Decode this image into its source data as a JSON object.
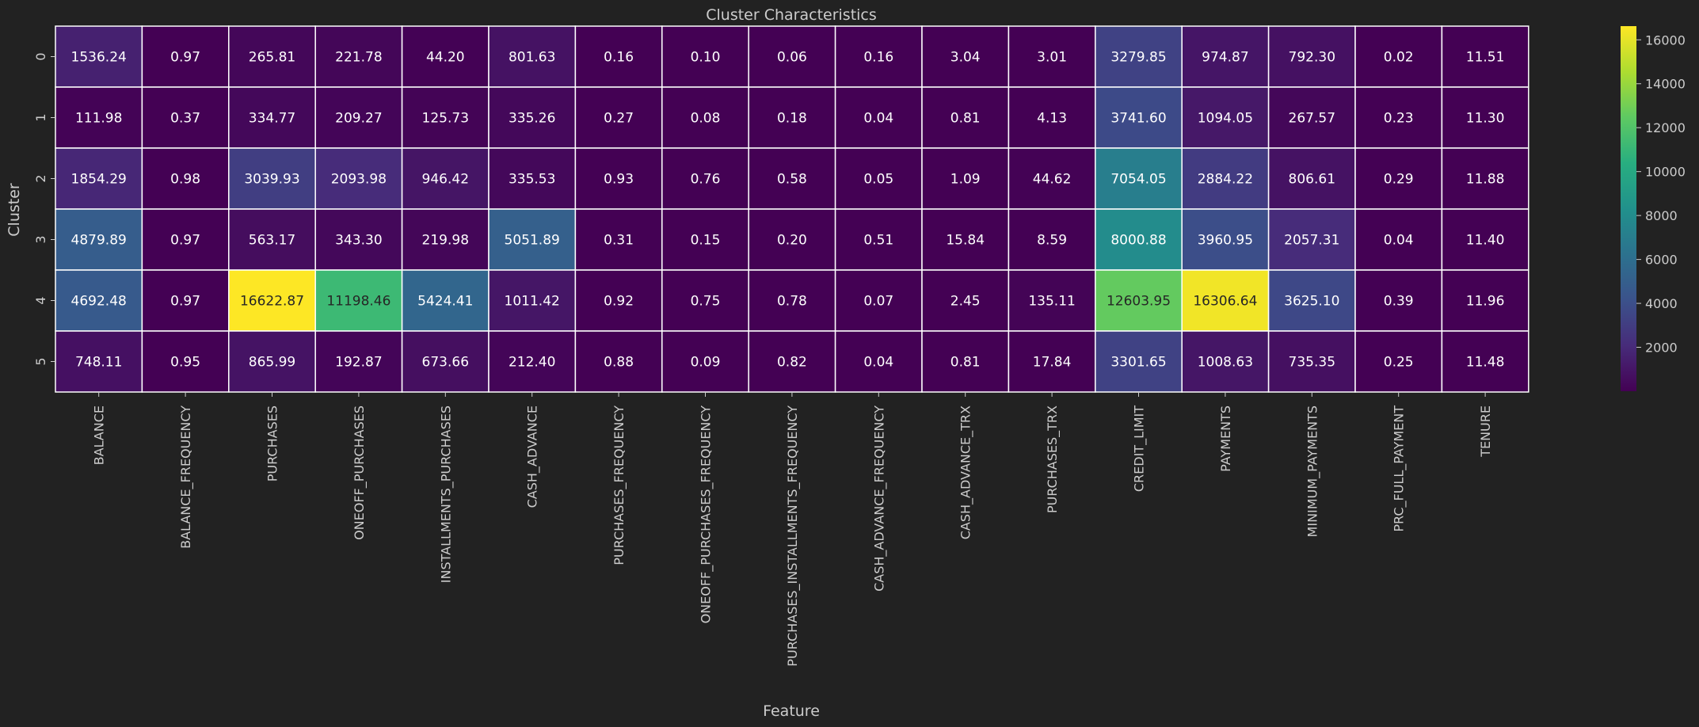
{
  "chart_data": {
    "type": "heatmap",
    "title": "Cluster Characteristics",
    "xlabel": "Feature",
    "ylabel": "Cluster",
    "clusters": [
      "0",
      "1",
      "2",
      "3",
      "4",
      "5"
    ],
    "features": [
      "BALANCE",
      "BALANCE_FREQUENCY",
      "PURCHASES",
      "ONEOFF_PURCHASES",
      "INSTALLMENTS_PURCHASES",
      "CASH_ADVANCE",
      "PURCHASES_FREQUENCY",
      "ONEOFF_PURCHASES_FREQUENCY",
      "PURCHASES_INSTALLMENTS_FREQUENCY",
      "CASH_ADVANCE_FREQUENCY",
      "CASH_ADVANCE_TRX",
      "PURCHASES_TRX",
      "CREDIT_LIMIT",
      "PAYMENTS",
      "MINIMUM_PAYMENTS",
      "PRC_FULL_PAYMENT",
      "TENURE"
    ],
    "values": [
      [
        1536.24,
        0.97,
        265.81,
        221.78,
        44.2,
        801.63,
        0.16,
        0.1,
        0.06,
        0.16,
        3.04,
        3.01,
        3279.85,
        974.87,
        792.3,
        0.02,
        11.51
      ],
      [
        111.98,
        0.37,
        334.77,
        209.27,
        125.73,
        335.26,
        0.27,
        0.08,
        0.18,
        0.04,
        0.81,
        4.13,
        3741.6,
        1094.05,
        267.57,
        0.23,
        11.3
      ],
      [
        1854.29,
        0.98,
        3039.93,
        2093.98,
        946.42,
        335.53,
        0.93,
        0.76,
        0.58,
        0.05,
        1.09,
        44.62,
        7054.05,
        2884.22,
        806.61,
        0.29,
        11.88
      ],
      [
        4879.89,
        0.97,
        563.17,
        343.3,
        219.98,
        5051.89,
        0.31,
        0.15,
        0.2,
        0.51,
        15.84,
        8.59,
        8000.88,
        3960.95,
        2057.31,
        0.04,
        11.4
      ],
      [
        4692.48,
        0.97,
        16622.87,
        11198.46,
        5424.41,
        1011.42,
        0.92,
        0.75,
        0.78,
        0.07,
        2.45,
        135.11,
        12603.95,
        16306.64,
        3625.1,
        0.39,
        11.96
      ],
      [
        748.11,
        0.95,
        865.99,
        192.87,
        673.66,
        212.4,
        0.88,
        0.09,
        0.82,
        0.04,
        0.81,
        17.84,
        3301.65,
        1008.63,
        735.35,
        0.25,
        11.48
      ]
    ],
    "value_labels": [
      [
        "1536.24",
        "0.97",
        "265.81",
        "221.78",
        "44.20",
        "801.63",
        "0.16",
        "0.10",
        "0.06",
        "0.16",
        "3.04",
        "3.01",
        "3279.85",
        "974.87",
        "792.30",
        "0.02",
        "11.51"
      ],
      [
        "111.98",
        "0.37",
        "334.77",
        "209.27",
        "125.73",
        "335.26",
        "0.27",
        "0.08",
        "0.18",
        "0.04",
        "0.81",
        "4.13",
        "3741.60",
        "1094.05",
        "267.57",
        "0.23",
        "11.30"
      ],
      [
        "1854.29",
        "0.98",
        "3039.93",
        "2093.98",
        "946.42",
        "335.53",
        "0.93",
        "0.76",
        "0.58",
        "0.05",
        "1.09",
        "44.62",
        "7054.05",
        "2884.22",
        "806.61",
        "0.29",
        "11.88"
      ],
      [
        "4879.89",
        "0.97",
        "563.17",
        "343.30",
        "219.98",
        "5051.89",
        "0.31",
        "0.15",
        "0.20",
        "0.51",
        "15.84",
        "8.59",
        "8000.88",
        "3960.95",
        "2057.31",
        "0.04",
        "11.40"
      ],
      [
        "4692.48",
        "0.97",
        "16622.87",
        "11198.46",
        "5424.41",
        "1011.42",
        "0.92",
        "0.75",
        "0.78",
        "0.07",
        "2.45",
        "135.11",
        "12603.95",
        "16306.64",
        "3625.10",
        "0.39",
        "11.96"
      ],
      [
        "748.11",
        "0.95",
        "865.99",
        "192.87",
        "673.66",
        "212.40",
        "0.88",
        "0.09",
        "0.82",
        "0.04",
        "0.81",
        "17.84",
        "3301.65",
        "1008.63",
        "735.35",
        "0.25",
        "11.48"
      ]
    ],
    "colorbar": {
      "colormap": "viridis",
      "range": [
        0,
        16622.87
      ],
      "ticks": [
        2000,
        4000,
        6000,
        8000,
        10000,
        12000,
        14000,
        16000
      ]
    },
    "colors": {
      "background": "#222222",
      "text": "#cccccc",
      "cell_border": "#ffffff"
    }
  }
}
